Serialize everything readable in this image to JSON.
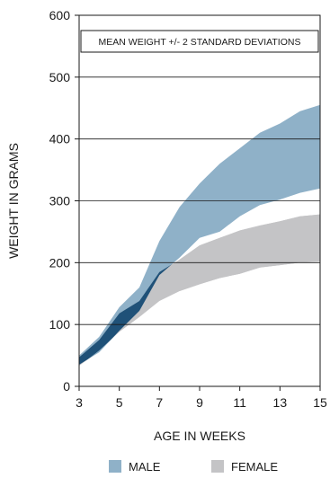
{
  "chart_data": {
    "type": "area",
    "annotation": "MEAN WEIGHT +/- 2 STANDARD DEVIATIONS",
    "xlabel": "AGE IN WEEKS",
    "ylabel": "WEIGHT IN GRAMS",
    "xlim": [
      3,
      15
    ],
    "ylim": [
      0,
      600
    ],
    "xticks": [
      3,
      5,
      7,
      9,
      11,
      13,
      15
    ],
    "yticks": [
      0,
      100,
      200,
      300,
      400,
      500,
      600
    ],
    "grid": "horizontal",
    "legend_position": "bottom",
    "overlap_color": "#1f5178",
    "series": [
      {
        "name": "MALE",
        "color": "#8fb1c8",
        "x": [
          3,
          4,
          5,
          6,
          7,
          8,
          9,
          10,
          11,
          12,
          13,
          14,
          15
        ],
        "upper": [
          50,
          80,
          128,
          160,
          235,
          290,
          328,
          360,
          385,
          410,
          425,
          445,
          455
        ],
        "lower": [
          35,
          55,
          90,
          122,
          180,
          208,
          240,
          250,
          275,
          293,
          302,
          313,
          320
        ]
      },
      {
        "name": "FEMALE",
        "color": "#c4c4c6",
        "x": [
          3,
          4,
          5,
          6,
          7,
          8,
          9,
          10,
          11,
          12,
          13,
          14,
          15
        ],
        "upper": [
          47,
          75,
          118,
          138,
          185,
          205,
          228,
          240,
          252,
          260,
          267,
          275,
          278
        ],
        "lower": [
          33,
          58,
          88,
          112,
          138,
          154,
          165,
          175,
          182,
          192,
          196,
          200,
          202
        ]
      }
    ]
  }
}
